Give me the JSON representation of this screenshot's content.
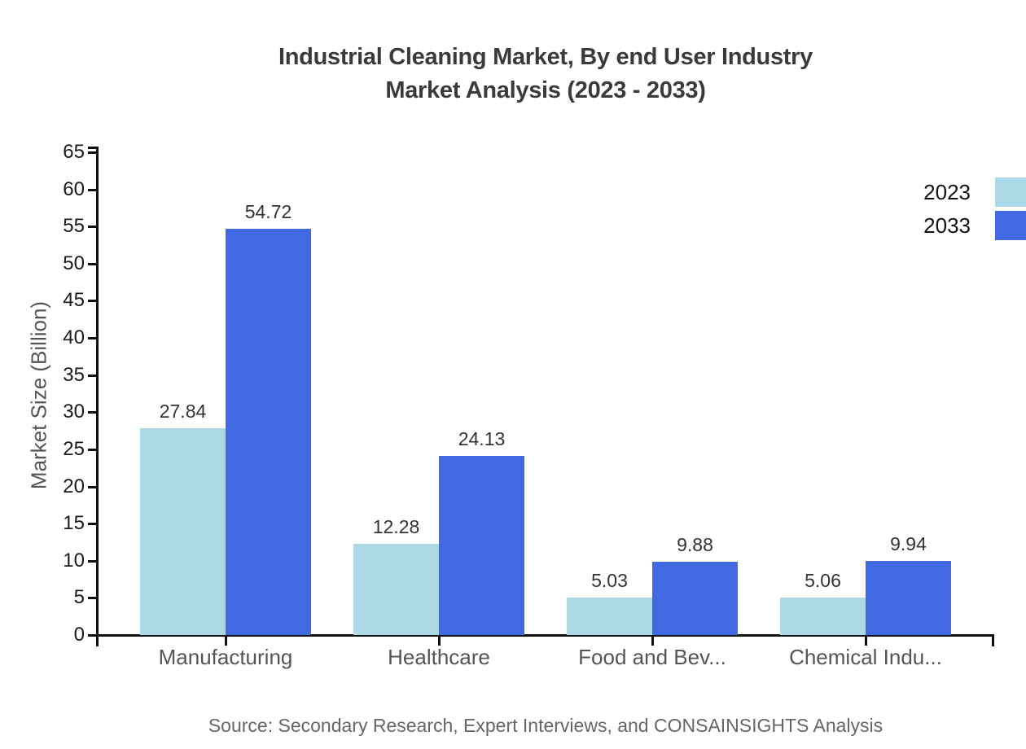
{
  "title": {
    "line1": "Industrial Cleaning Market, By end User Industry",
    "line2": "Market Analysis (2023 - 2033)"
  },
  "source": "Source: Secondary Research, Expert Interviews, and CONSAINSIGHTS Analysis",
  "legend": {
    "items": [
      {
        "label": "2023",
        "color": "#ADD8E6"
      },
      {
        "label": "2033",
        "color": "#4169E1"
      }
    ]
  },
  "colors": {
    "series_2023": "#ADD8E6",
    "series_2033": "#4169E1",
    "axis": "#111111",
    "title_text": "#3a3a3a",
    "category_text": "#555555",
    "value_text": "#333333",
    "source_text": "#666666"
  },
  "chart_data": {
    "type": "bar",
    "title": "Industrial Cleaning Market, By end User Industry Market Analysis (2023 - 2033)",
    "categories": [
      "Manufacturing",
      "Healthcare",
      "Food and Bev...",
      "Chemical Indu..."
    ],
    "series": [
      {
        "name": "2023",
        "color": "#ADD8E6",
        "values": [
          27.84,
          12.28,
          5.03,
          5.06
        ]
      },
      {
        "name": "2033",
        "color": "#4169E1",
        "values": [
          54.72,
          24.13,
          9.88,
          9.94
        ]
      }
    ],
    "value_labels": [
      "27.84",
      "54.72",
      "12.28",
      "24.13",
      "5.03",
      "9.88",
      "5.06",
      "9.94"
    ],
    "xlabel": "",
    "ylabel": "Market Size (Billion)",
    "ylim": [
      0,
      65
    ],
    "yticks": [
      0,
      5,
      10,
      15,
      20,
      25,
      30,
      35,
      40,
      45,
      50,
      55,
      60,
      65
    ],
    "grid": false,
    "legend_position": "top-right",
    "value_labels_shown": true
  }
}
